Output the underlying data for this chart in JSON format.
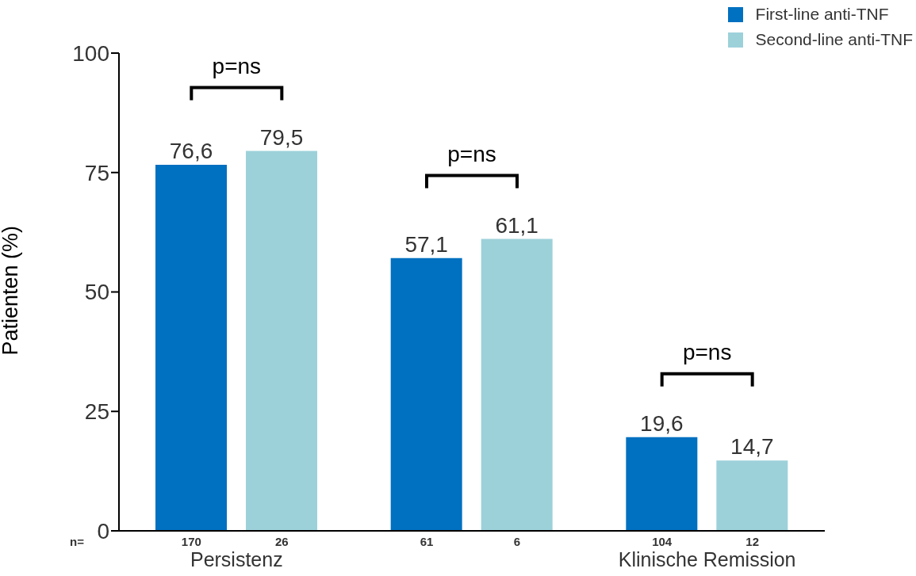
{
  "chart_data": {
    "type": "bar",
    "ylabel": "Patienten (%)",
    "categories": [
      "Persistenz",
      null,
      "Klinische Remission"
    ],
    "series": [
      {
        "name": "First-line anti-TNF",
        "color": "#0070c0",
        "values": [
          76.6,
          57.1,
          19.6
        ],
        "value_labels": [
          "76,6",
          "57,1",
          "19,6"
        ]
      },
      {
        "name": "Second-line anti-TNF",
        "color": "#9dd1da",
        "values": [
          79.5,
          61.1,
          14.7
        ],
        "value_labels": [
          "79,5",
          "61,1",
          "14,7"
        ]
      }
    ],
    "ylim": [
      0,
      100
    ],
    "yticks": [
      0,
      25,
      50,
      75,
      100
    ],
    "legend": "top right",
    "annotations": [
      "n=",
      "170",
      "26",
      "61",
      "6",
      "104",
      "12",
      "p=ns",
      "p=ns",
      "p=ns"
    ]
  }
}
